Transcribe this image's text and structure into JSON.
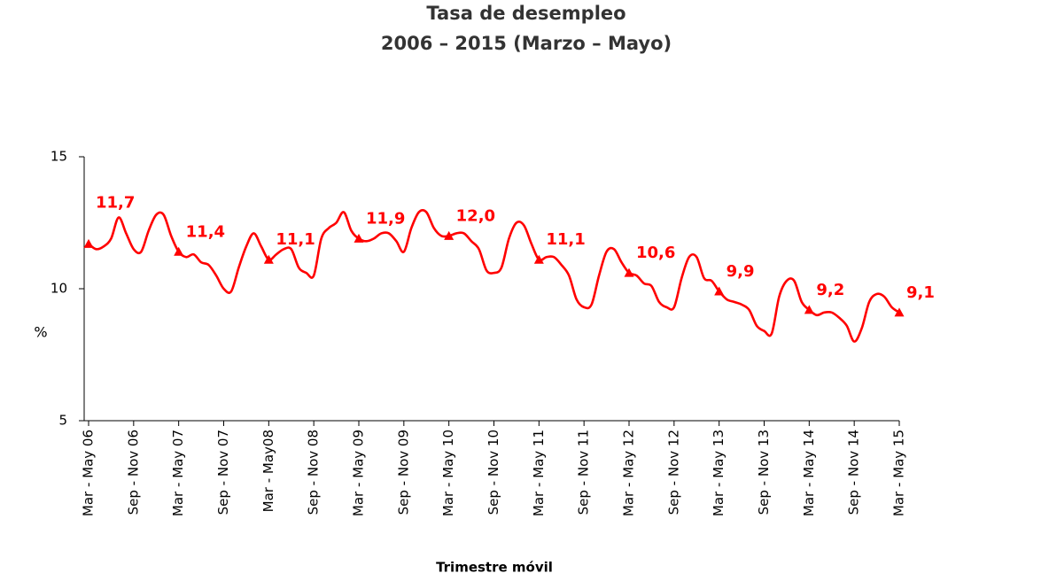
{
  "chart_data": {
    "type": "line",
    "title": "Tasa de desempleo",
    "subtitle": "2006 – 2015 (Marzo – Mayo)",
    "y_label": "%",
    "x_label": "Trimestre móvil",
    "categories": [
      "Mar - May 06",
      null,
      null,
      null,
      null,
      null,
      "Sep - Nov 06",
      null,
      null,
      null,
      null,
      null,
      "Mar - May 07",
      null,
      null,
      null,
      null,
      null,
      "Sep - Nov 07",
      null,
      null,
      null,
      null,
      null,
      "Mar - May08",
      null,
      null,
      null,
      null,
      null,
      "Sep - Nov 08",
      null,
      null,
      null,
      null,
      null,
      "Mar - May 09",
      null,
      null,
      null,
      null,
      null,
      "Sep - Nov 09",
      null,
      null,
      null,
      null,
      null,
      "Mar - May 10",
      null,
      null,
      null,
      null,
      null,
      "Sep - Nov 10",
      null,
      null,
      null,
      null,
      null,
      "Mar - May 11",
      null,
      null,
      null,
      null,
      null,
      "Sep - Nov 11",
      null,
      null,
      null,
      null,
      null,
      "Mar - May 12",
      null,
      null,
      null,
      null,
      null,
      "Sep - Nov 12",
      null,
      null,
      null,
      null,
      null,
      "Mar - May 13",
      null,
      null,
      null,
      null,
      null,
      "Sep - Nov 13",
      null,
      null,
      null,
      null,
      null,
      "Mar - May 14",
      null,
      null,
      null,
      null,
      null,
      "Sep - Nov 14",
      null,
      null,
      null,
      null,
      null,
      "Mar - May 15"
    ],
    "series": [
      {
        "color": "#ff0000",
        "values": [
          11.7,
          11.5,
          11.6,
          11.9,
          12.7,
          12.1,
          11.5,
          11.4,
          12.2,
          12.8,
          12.8,
          12.0,
          11.4,
          11.2,
          11.3,
          11.0,
          10.9,
          10.5,
          10.0,
          9.9,
          10.8,
          11.6,
          12.1,
          11.6,
          11.1,
          11.3,
          11.5,
          11.5,
          10.8,
          10.6,
          10.5,
          11.9,
          12.3,
          12.5,
          12.9,
          12.2,
          11.9,
          11.8,
          11.9,
          12.1,
          12.1,
          11.8,
          11.4,
          12.3,
          12.9,
          12.9,
          12.3,
          12.0,
          12.0,
          12.1,
          12.1,
          11.8,
          11.5,
          10.7,
          10.6,
          10.8,
          11.9,
          12.5,
          12.4,
          11.7,
          11.1,
          11.2,
          11.2,
          10.9,
          10.5,
          9.6,
          9.3,
          9.4,
          10.5,
          11.4,
          11.5,
          11.0,
          10.6,
          10.5,
          10.2,
          10.1,
          9.5,
          9.3,
          9.3,
          10.4,
          11.2,
          11.2,
          10.4,
          10.3,
          9.9,
          9.6,
          9.5,
          9.4,
          9.2,
          8.6,
          8.4,
          8.3,
          9.7,
          10.3,
          10.3,
          9.5,
          9.2,
          9.0,
          9.1,
          9.1,
          8.9,
          8.6,
          8.0,
          8.5,
          9.5,
          9.8,
          9.7,
          9.3,
          9.1
        ],
        "value_labels": [
          "11,7",
          null,
          null,
          null,
          null,
          null,
          null,
          null,
          null,
          null,
          null,
          null,
          "11,4",
          null,
          null,
          null,
          null,
          null,
          null,
          null,
          null,
          null,
          null,
          null,
          "11,1",
          null,
          null,
          null,
          null,
          null,
          null,
          null,
          null,
          null,
          null,
          null,
          "11,9",
          null,
          null,
          null,
          null,
          null,
          null,
          null,
          null,
          null,
          null,
          null,
          "12,0",
          null,
          null,
          null,
          null,
          null,
          null,
          null,
          null,
          null,
          null,
          null,
          "11,1",
          null,
          null,
          null,
          null,
          null,
          null,
          null,
          null,
          null,
          null,
          null,
          "10,6",
          null,
          null,
          null,
          null,
          null,
          null,
          null,
          null,
          null,
          null,
          null,
          "9,9",
          null,
          null,
          null,
          null,
          null,
          null,
          null,
          null,
          null,
          null,
          null,
          "9,2",
          null,
          null,
          null,
          null,
          null,
          null,
          null,
          null,
          null,
          null,
          null,
          "9,1"
        ]
      }
    ],
    "ylim": [
      5,
      15
    ],
    "yticks": [
      5,
      10,
      15
    ],
    "grid": false
  }
}
